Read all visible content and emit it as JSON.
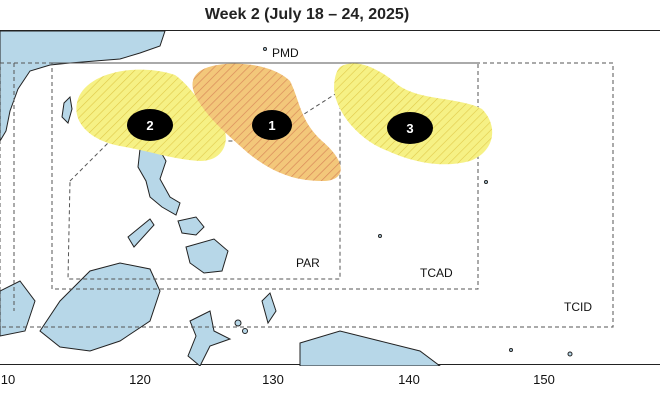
{
  "title": "Week 2 (July 18 – 24, 2025)",
  "colors": {
    "ocean": "#ffffff",
    "land": "#b7d7e8",
    "coast": "#222222",
    "area_fill": "#f6f185",
    "area_hatch": "#e0c94a",
    "area_high_fill": "#f3c77a",
    "area_high_hatch": "#d98a5a",
    "marker": "#000000",
    "marker_text": "#ffffff",
    "boundary": "#555555"
  },
  "boundaries": [
    {
      "id": "pmd",
      "label": "PMD"
    },
    {
      "id": "par",
      "label": "PAR"
    },
    {
      "id": "tcad",
      "label": "TCAD"
    },
    {
      "id": "tcid",
      "label": "TCID"
    }
  ],
  "areas": [
    {
      "id": "area-1",
      "label": "1",
      "likelihood": "higher"
    },
    {
      "id": "area-2",
      "label": "2",
      "likelihood": "lower"
    },
    {
      "id": "area-3",
      "label": "3",
      "likelihood": "lower"
    }
  ],
  "x_ticks": [
    "10",
    "120",
    "130",
    "140",
    "150"
  ]
}
